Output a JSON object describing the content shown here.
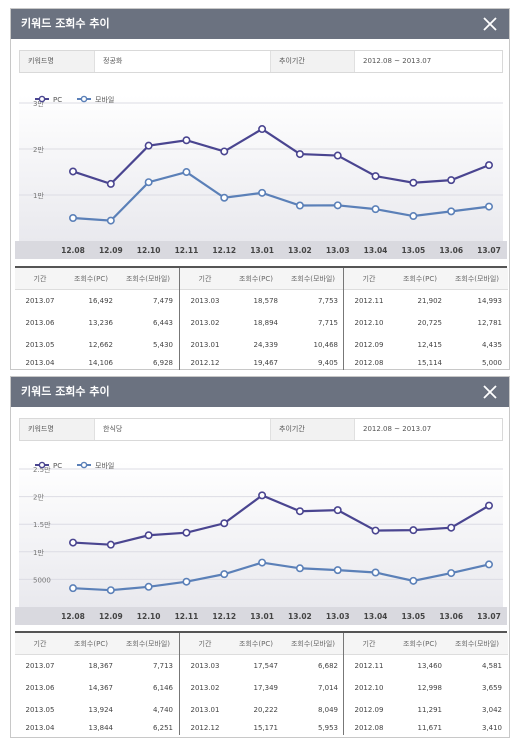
{
  "colors": {
    "pc": "#4a4590",
    "mobile": "#5b80b8",
    "titlebar": "#6b7280"
  },
  "panels": [
    {
      "title": "키워드 조회수 추이",
      "keyword_label": "키워드명",
      "keyword_value": "정공화",
      "period_label": "추이기간",
      "period_value": "2012.08 ~ 2013.07",
      "chart_data": {
        "type": "line",
        "categories": [
          "12.08",
          "12.09",
          "12.10",
          "12.11",
          "12.12",
          "13.01",
          "13.02",
          "13.03",
          "13.04",
          "13.05",
          "13.06",
          "13.07"
        ],
        "series": [
          {
            "name": "PC",
            "values": [
              15114,
              12415,
              20725,
              21902,
              19467,
              24339,
              18894,
              18578,
              14106,
              12662,
              13236,
              16492
            ]
          },
          {
            "name": "모바일",
            "values": [
              5000,
              4435,
              12781,
              14993,
              9405,
              10468,
              7715,
              7753,
              6928,
              5430,
              6443,
              7479
            ]
          }
        ],
        "ylim": [
          0,
          30000
        ],
        "yticks": [
          10000,
          20000,
          30000
        ],
        "ytick_labels": [
          "1만",
          "2만",
          "3만"
        ],
        "legend": "top-left"
      },
      "table": {
        "headers": [
          "기간",
          "조회수(PC)",
          "조회수(모바일)"
        ],
        "groups": [
          [
            [
              "2013.07",
              "16,492",
              "7,479"
            ],
            [
              "2013.06",
              "13,236",
              "6,443"
            ],
            [
              "2013.05",
              "12,662",
              "5,430"
            ],
            [
              "2013.04",
              "14,106",
              "6,928"
            ]
          ],
          [
            [
              "2013.03",
              "18,578",
              "7,753"
            ],
            [
              "2013.02",
              "18,894",
              "7,715"
            ],
            [
              "2013.01",
              "24,339",
              "10,468"
            ],
            [
              "2012.12",
              "19,467",
              "9,405"
            ]
          ],
          [
            [
              "2012.11",
              "21,902",
              "14,993"
            ],
            [
              "2012.10",
              "20,725",
              "12,781"
            ],
            [
              "2012.09",
              "12,415",
              "4,435"
            ],
            [
              "2012.08",
              "15,114",
              "5,000"
            ]
          ]
        ]
      }
    },
    {
      "title": "키워드 조회수 추이",
      "keyword_label": "키워드명",
      "keyword_value": "한식당",
      "period_label": "추이기간",
      "period_value": "2012.08 ~ 2013.07",
      "chart_data": {
        "type": "line",
        "categories": [
          "12.08",
          "12.09",
          "12.10",
          "12.11",
          "12.12",
          "13.01",
          "13.02",
          "13.03",
          "13.04",
          "13.05",
          "13.06",
          "13.07"
        ],
        "series": [
          {
            "name": "PC",
            "values": [
              11671,
              11291,
              12998,
              13460,
              15171,
              20222,
              17349,
              17547,
              13844,
              13924,
              14367,
              18367
            ]
          },
          {
            "name": "모바일",
            "values": [
              3410,
              3042,
              3659,
              4581,
              5953,
              8049,
              7014,
              6682,
              6251,
              4740,
              6146,
              7713
            ]
          }
        ],
        "ylim": [
          0,
          25000
        ],
        "yticks": [
          5000,
          10000,
          15000,
          20000,
          25000
        ],
        "ytick_labels": [
          "5000",
          "1만",
          "1.5만",
          "2만",
          "2.5만"
        ],
        "legend": "top-left"
      },
      "table": {
        "headers": [
          "기간",
          "조회수(PC)",
          "조회수(모바일)"
        ],
        "groups": [
          [
            [
              "2013.07",
              "18,367",
              "7,713"
            ],
            [
              "2013.06",
              "14,367",
              "6,146"
            ],
            [
              "2013.05",
              "13,924",
              "4,740"
            ],
            [
              "2013.04",
              "13,844",
              "6,251"
            ]
          ],
          [
            [
              "2013.03",
              "17,547",
              "6,682"
            ],
            [
              "2013.02",
              "17,349",
              "7,014"
            ],
            [
              "2013.01",
              "20,222",
              "8,049"
            ],
            [
              "2012.12",
              "15,171",
              "5,953"
            ]
          ],
          [
            [
              "2012.11",
              "13,460",
              "4,581"
            ],
            [
              "2012.10",
              "12,998",
              "3,659"
            ],
            [
              "2012.09",
              "11,291",
              "3,042"
            ],
            [
              "2012.08",
              "11,671",
              "3,410"
            ]
          ]
        ]
      }
    }
  ]
}
